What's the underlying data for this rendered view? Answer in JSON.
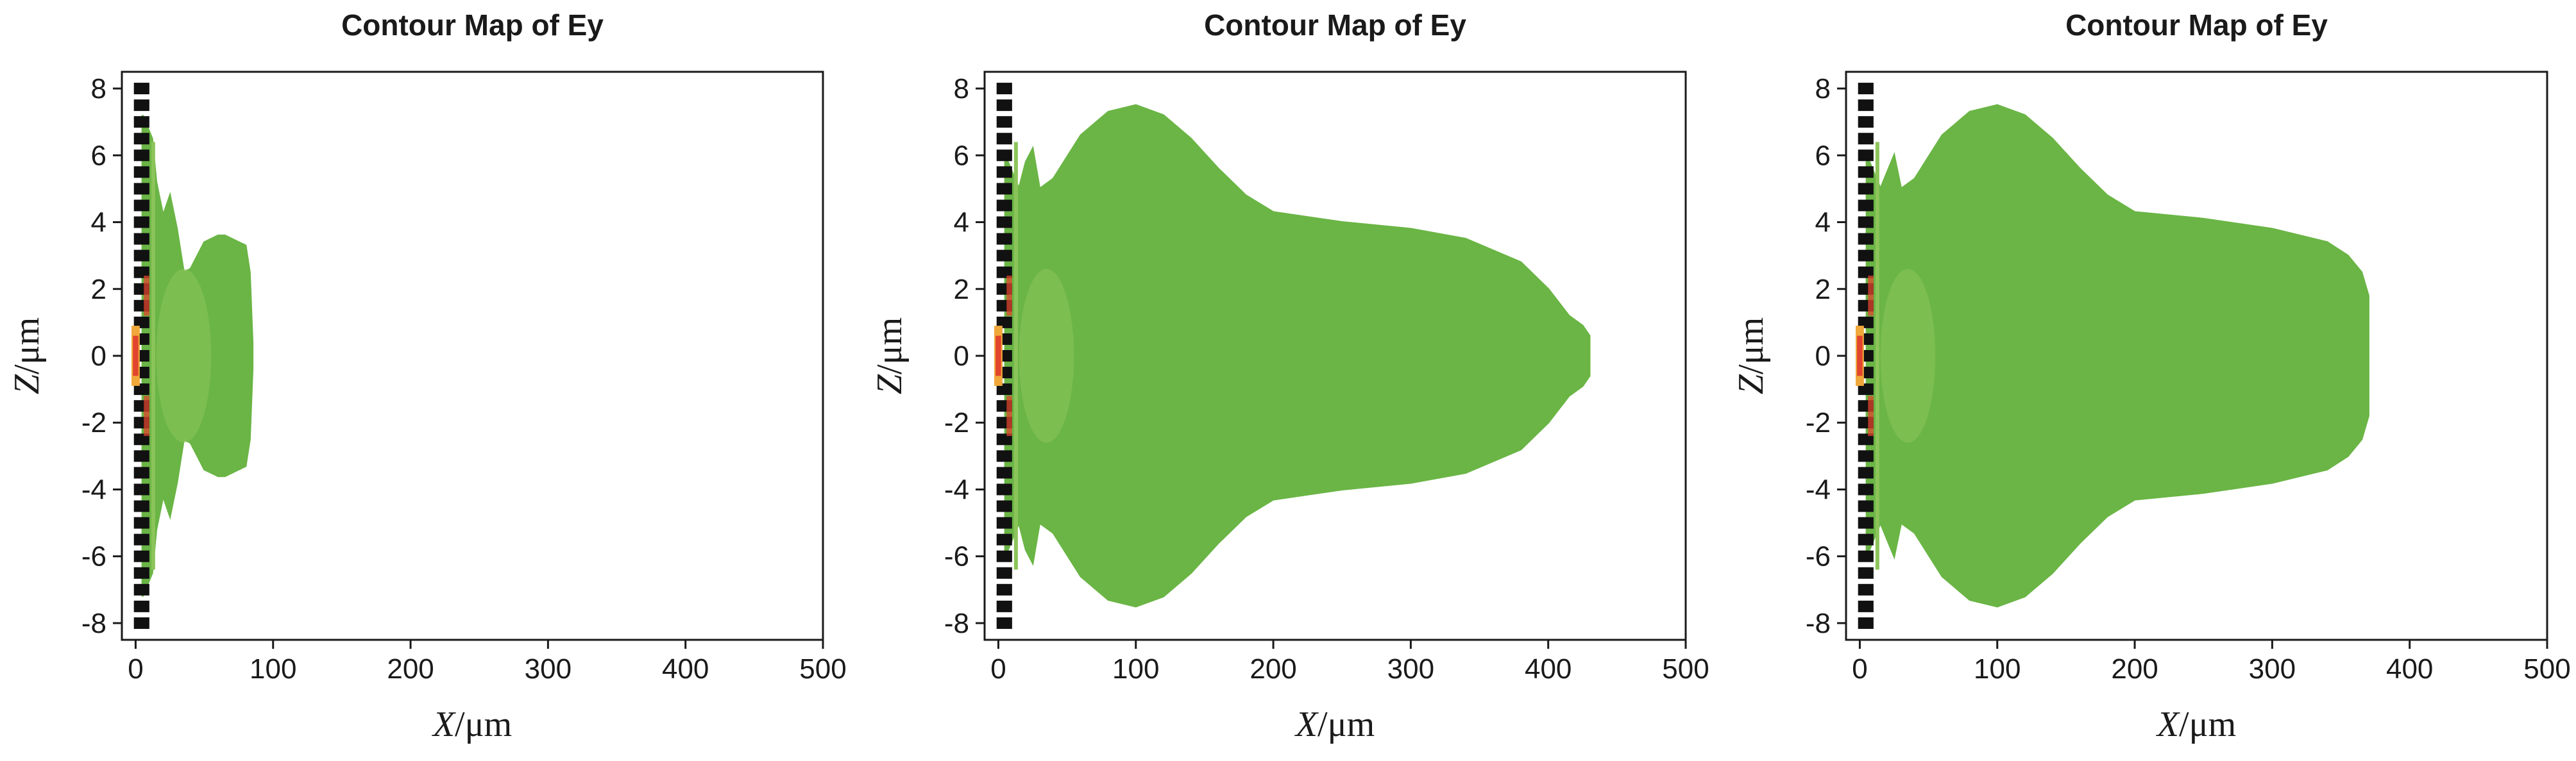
{
  "chart_data": [
    {
      "type": "heatmap",
      "title": "Contour Map of Ey",
      "xlabel": "X/μm",
      "ylabel": "Z/μm",
      "xlim": [
        -10,
        500
      ],
      "ylim": [
        -8.5,
        8.5
      ],
      "xticks": [
        0,
        100,
        200,
        300,
        400,
        500
      ],
      "yticks": [
        8,
        6,
        4,
        2,
        0,
        -2,
        -4,
        -6,
        -8
      ],
      "grating": {
        "x_range": [
          -5,
          10
        ],
        "z_range": [
          -8,
          8
        ]
      },
      "field_profile": {
        "x": [
          5,
          12,
          15,
          20,
          25,
          30,
          35,
          40,
          45,
          50,
          55,
          60,
          65,
          70,
          75,
          80,
          83,
          85
        ],
        "z_half_width": [
          7.2,
          6.5,
          5.2,
          4.2,
          4.8,
          3.8,
          2.5,
          2.6,
          3.0,
          3.4,
          3.5,
          3.6,
          3.6,
          3.5,
          3.4,
          3.3,
          2.5,
          0.4
        ]
      }
    },
    {
      "type": "heatmap",
      "title": "Contour Map of Ey",
      "xlabel": "X/μm",
      "ylabel": "Z/μm",
      "xlim": [
        -10,
        500
      ],
      "ylim": [
        -8.5,
        8.5
      ],
      "xticks": [
        0,
        100,
        200,
        300,
        400,
        500
      ],
      "yticks": [
        8,
        6,
        4,
        2,
        0,
        -2,
        -4,
        -6,
        -8
      ],
      "grating": {
        "x_range": [
          -5,
          10
        ],
        "z_range": [
          -8,
          8
        ]
      },
      "field_profile": {
        "x": [
          5,
          15,
          20,
          25,
          30,
          40,
          60,
          80,
          100,
          120,
          140,
          160,
          180,
          200,
          250,
          300,
          340,
          380,
          400,
          415,
          425,
          430
        ],
        "z_half_width": [
          6.0,
          5.0,
          5.8,
          6.2,
          5.0,
          5.3,
          6.6,
          7.3,
          7.5,
          7.2,
          6.5,
          5.6,
          4.8,
          4.3,
          4.0,
          3.8,
          3.5,
          2.8,
          2.0,
          1.2,
          0.9,
          0.6
        ]
      }
    },
    {
      "type": "heatmap",
      "title": "Contour Map of Ey",
      "xlabel": "X/μm",
      "ylabel": "Z/μm",
      "xlim": [
        -10,
        500
      ],
      "ylim": [
        -8.5,
        8.5
      ],
      "xticks": [
        0,
        100,
        200,
        300,
        400,
        500
      ],
      "yticks": [
        8,
        6,
        4,
        2,
        0,
        -2,
        -4,
        -6,
        -8
      ],
      "grating": {
        "x_range": [
          -5,
          10
        ],
        "z_range": [
          -8,
          8
        ]
      },
      "field_profile": {
        "x": [
          5,
          15,
          20,
          25,
          30,
          40,
          60,
          80,
          100,
          120,
          140,
          160,
          180,
          200,
          250,
          300,
          340,
          355,
          365,
          370
        ],
        "z_half_width": [
          6.0,
          5.0,
          5.5,
          6.0,
          5.0,
          5.3,
          6.6,
          7.3,
          7.5,
          7.2,
          6.5,
          5.6,
          4.8,
          4.3,
          4.1,
          3.8,
          3.4,
          3.0,
          2.5,
          1.8
        ]
      }
    }
  ],
  "colors": {
    "field": "#6ab545",
    "field_light": "#8cc45a",
    "hotspot": "#e2452e",
    "hotspot_edge": "#f0a83a",
    "grating": "#111111",
    "axis": "#1a1a1a"
  }
}
